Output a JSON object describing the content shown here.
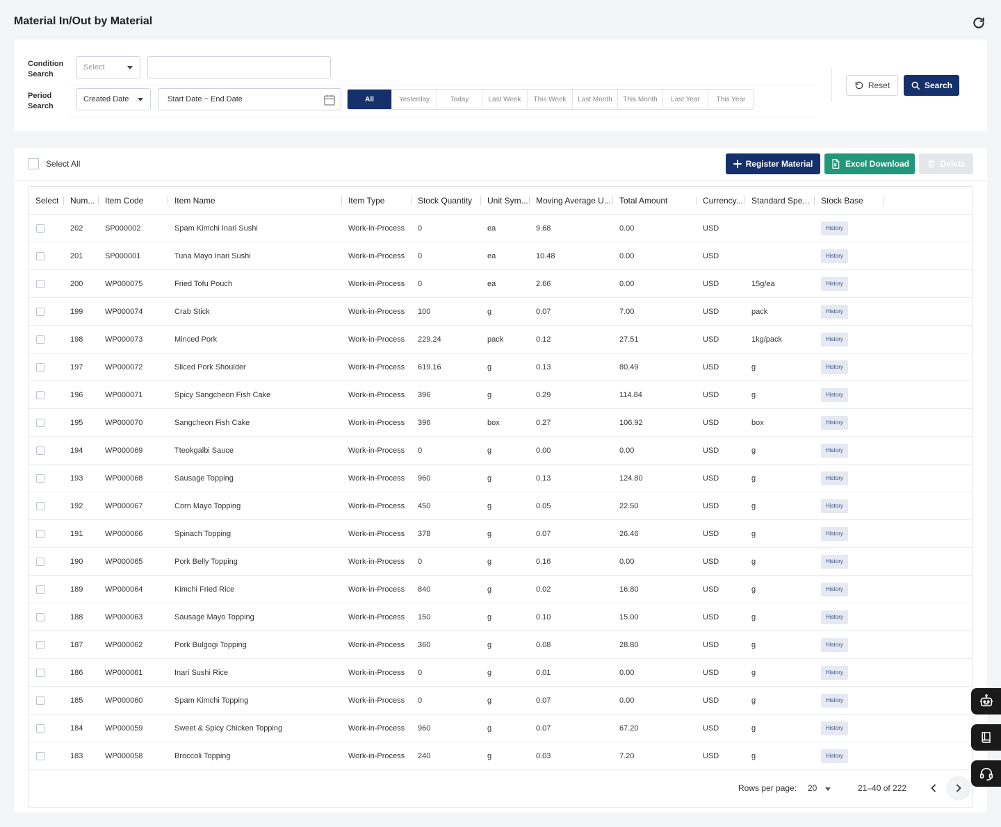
{
  "page": {
    "title": "Material In/Out by Material"
  },
  "search": {
    "condition_label_1": "Condition",
    "condition_label_2": "Search",
    "condition_select_placeholder": "Select",
    "condition_text_value": "",
    "period_label_1": "Period",
    "period_label_2": "Search",
    "period_type_value": "Created Date",
    "date_range": "Start Date ~ End Date",
    "periods": [
      "All",
      "Yesterday",
      "Today",
      "Last Week",
      "This Week",
      "Last Month",
      "This Month",
      "Last Year",
      "This Year"
    ],
    "active_period": "All",
    "reset_label": "Reset",
    "search_label": "Search"
  },
  "toolbar": {
    "select_all_label": "Select All",
    "register_label": "Register Material",
    "excel_label": "Excel Download",
    "delete_label": "Delete"
  },
  "table": {
    "columns": [
      "Select",
      "Num...",
      "Item Code",
      "Item Name",
      "Item Type",
      "Stock Quantity",
      "Unit Sym...",
      "Moving Average U...",
      "Total Amount",
      "Currency...",
      "Standard Spe...",
      "Stock Base"
    ],
    "history_label": "History",
    "rows": [
      [
        "202",
        "SP000002",
        "Spam Kimchi Inari Sushi",
        "Work-in-Process",
        "0",
        "ea",
        "9.68",
        "0.00",
        "USD",
        ""
      ],
      [
        "201",
        "SP000001",
        "Tuna Mayo Inari Sushi",
        "Work-in-Process",
        "0",
        "ea",
        "10.48",
        "0.00",
        "USD",
        ""
      ],
      [
        "200",
        "WP000075",
        "Fried Tofu Pouch",
        "Work-in-Process",
        "0",
        "ea",
        "2.66",
        "0.00",
        "USD",
        "15g/ea"
      ],
      [
        "199",
        "WP000074",
        "Crab Stick",
        "Work-in-Process",
        "100",
        "g",
        "0.07",
        "7.00",
        "USD",
        "pack"
      ],
      [
        "198",
        "WP000073",
        "Minced Pork",
        "Work-in-Process",
        "229.24",
        "pack",
        "0.12",
        "27.51",
        "USD",
        "1kg/pack"
      ],
      [
        "197",
        "WP000072",
        "Sliced Pork Shoulder",
        "Work-in-Process",
        "619.16",
        "g",
        "0.13",
        "80.49",
        "USD",
        "g"
      ],
      [
        "196",
        "WP000071",
        "Spicy Sangcheon Fish Cake",
        "Work-in-Process",
        "396",
        "g",
        "0.29",
        "114.84",
        "USD",
        "g"
      ],
      [
        "195",
        "WP000070",
        "Sangcheon Fish Cake",
        "Work-in-Process",
        "396",
        "box",
        "0.27",
        "106.92",
        "USD",
        "box"
      ],
      [
        "194",
        "WP000069",
        "Tteokgalbi Sauce",
        "Work-in-Process",
        "0",
        "g",
        "0.00",
        "0.00",
        "USD",
        "g"
      ],
      [
        "193",
        "WP000068",
        "Sausage Topping",
        "Work-in-Process",
        "960",
        "g",
        "0.13",
        "124.80",
        "USD",
        "g"
      ],
      [
        "192",
        "WP000067",
        "Corn Mayo Topping",
        "Work-in-Process",
        "450",
        "g",
        "0.05",
        "22.50",
        "USD",
        "g"
      ],
      [
        "191",
        "WP000066",
        "Spinach Topping",
        "Work-in-Process",
        "378",
        "g",
        "0.07",
        "26.46",
        "USD",
        "g"
      ],
      [
        "190",
        "WP000065",
        "Pork Belly Topping",
        "Work-in-Process",
        "0",
        "g",
        "0.16",
        "0.00",
        "USD",
        "g"
      ],
      [
        "189",
        "WP000064",
        "Kimchi Fried Rice",
        "Work-in-Process",
        "840",
        "g",
        "0.02",
        "16.80",
        "USD",
        "g"
      ],
      [
        "188",
        "WP000063",
        "Sausage Mayo Topping",
        "Work-in-Process",
        "150",
        "g",
        "0.10",
        "15.00",
        "USD",
        "g"
      ],
      [
        "187",
        "WP000062",
        "Pork Bulgogi Topping",
        "Work-in-Process",
        "360",
        "g",
        "0.08",
        "28.80",
        "USD",
        "g"
      ],
      [
        "186",
        "WP000061",
        "Inari Sushi Rice",
        "Work-in-Process",
        "0",
        "g",
        "0.01",
        "0.00",
        "USD",
        "g"
      ],
      [
        "185",
        "WP000060",
        "Spam Kimchi Topping",
        "Work-in-Process",
        "0",
        "g",
        "0.07",
        "0.00",
        "USD",
        "g"
      ],
      [
        "184",
        "WP000059",
        "Sweet & Spicy Chicken Topping",
        "Work-in-Process",
        "960",
        "g",
        "0.07",
        "67.20",
        "USD",
        "g"
      ],
      [
        "183",
        "WP000058",
        "Broccoli Topping",
        "Work-in-Process",
        "240",
        "g",
        "0.03",
        "7.20",
        "USD",
        "g"
      ]
    ]
  },
  "pagination": {
    "rows_per_page_label": "Rows per page:",
    "rows_per_page_value": "20",
    "range_text": "21–40 of 222"
  },
  "side_buttons": [
    "robot-icon",
    "book-icon",
    "headset-icon"
  ],
  "colors": {
    "primary": "#16306b",
    "excel": "#23977a",
    "history_bg": "#e6e9f2"
  }
}
